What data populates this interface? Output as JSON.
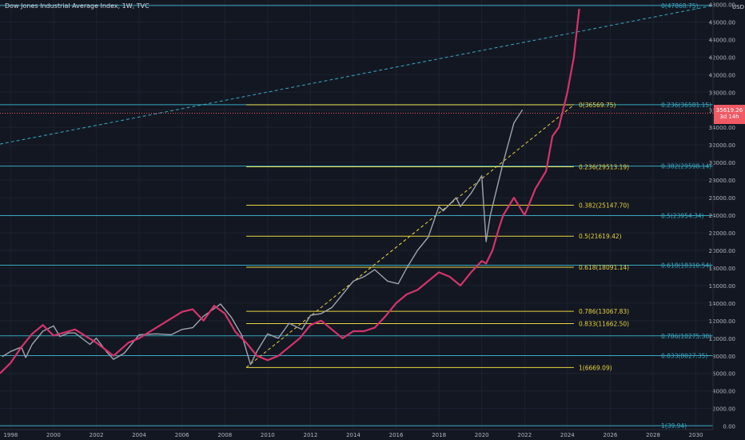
{
  "title": "Dow Jones Industrial Average Index, 1W, TVC",
  "currency": "USD",
  "last_price": {
    "value": "35619.26",
    "countdown": "3d 14h"
  },
  "colors": {
    "background": "#131722",
    "grid": "#1e2230",
    "axis_text": "#b2b5be",
    "cyan_level": "#37a8c2",
    "yellow_level": "#e8d43f",
    "dji_series": "#9ea3ad",
    "overlay_series": "#d6336c",
    "price_badge": "#f05a64"
  },
  "chart_data": {
    "type": "line",
    "title": "Dow Jones Industrial Average Index, 1W, TVC",
    "ylabel": "USD",
    "ylim": [
      -400,
      48500
    ],
    "xlim": [
      1997.5,
      2030.8
    ],
    "y_ticks": [
      "0.00",
      "2000.00",
      "4000.00",
      "6000.00",
      "8000.00",
      "10000.00",
      "12000.00",
      "14000.00",
      "16000.00",
      "18000.00",
      "20000.00",
      "22000.00",
      "24000.00",
      "26000.00",
      "28000.00",
      "30000.00",
      "32000.00",
      "34000.00",
      "36000.00",
      "38000.00",
      "40000.00",
      "42000.00",
      "44000.00",
      "46000.00",
      "48000.00"
    ],
    "x_ticks": [
      1998,
      2000,
      2002,
      2004,
      2006,
      2008,
      2010,
      2012,
      2014,
      2016,
      2018,
      2020,
      2022,
      2024,
      2026,
      2028,
      2030
    ],
    "grid": true,
    "series": [
      {
        "x": [
          1997.6,
          1998.0,
          1998.5,
          1998.7,
          1999.0,
          1999.5,
          2000.0,
          2000.3,
          2000.7,
          2001.0,
          2001.7,
          2002.0,
          2002.5,
          2002.8,
          2003.3,
          2004.0,
          2004.8,
          2005.5,
          2006.0,
          2006.5,
          2007.0,
          2007.8,
          2008.3,
          2008.8,
          2009.2,
          2009.5,
          2010.0,
          2010.5,
          2011.0,
          2011.6,
          2012.0,
          2012.5,
          2013.0,
          2013.5,
          2014.0,
          2014.5,
          2015.0,
          2015.6,
          2016.1,
          2016.5,
          2017.0,
          2017.5,
          2018.0,
          2018.2,
          2018.8,
          2019.0,
          2019.5,
          2020.0,
          2020.2,
          2020.4,
          2020.8,
          2021.0,
          2021.5,
          2021.9
        ],
        "y": [
          7900,
          8500,
          9000,
          7800,
          9300,
          10800,
          11400,
          10200,
          10600,
          10600,
          9300,
          10000,
          8400,
          7600,
          8300,
          10400,
          10500,
          10400,
          11000,
          11200,
          12500,
          13900,
          12400,
          10300,
          7000,
          8500,
          10500,
          10000,
          11700,
          11000,
          12600,
          12800,
          13500,
          15000,
          16500,
          17000,
          17800,
          16500,
          16200,
          18000,
          20000,
          21500,
          25000,
          24500,
          26000,
          25000,
          26500,
          28500,
          21000,
          24000,
          28000,
          30000,
          34500,
          36000
        ]
      },
      {
        "x": [
          1997.5,
          1998.0,
          1998.5,
          1999.0,
          1999.5,
          2000.0,
          2001.0,
          2002.0,
          2002.8,
          2003.5,
          2004.0,
          2005.0,
          2006.0,
          2006.5,
          2007.0,
          2007.5,
          2008.0,
          2008.5,
          2009.0,
          2009.5,
          2010.0,
          2010.5,
          2011.0,
          2011.5,
          2012.0,
          2012.5,
          2013.0,
          2013.5,
          2014.0,
          2014.5,
          2015.0,
          2015.5,
          2016.0,
          2016.5,
          2017.0,
          2017.5,
          2018.0,
          2018.5,
          2019.0,
          2019.5,
          2020.0,
          2020.2,
          2020.5,
          2020.8,
          2021.0,
          2021.5,
          2022.0,
          2022.5,
          2023.0,
          2023.3,
          2023.6,
          2024.0,
          2024.3,
          2024.55
        ],
        "y": [
          6000,
          7200,
          9000,
          10500,
          11500,
          10300,
          11000,
          9500,
          8000,
          9500,
          10000,
          11500,
          13000,
          13300,
          12000,
          13700,
          12800,
          10700,
          9500,
          8000,
          7500,
          8000,
          9000,
          10000,
          11500,
          12000,
          11000,
          10000,
          10800,
          10800,
          11200,
          12500,
          14000,
          15000,
          15500,
          16500,
          17500,
          17000,
          16000,
          17500,
          18800,
          18500,
          20000,
          22500,
          24000,
          26000,
          24000,
          27000,
          29000,
          33000,
          34000,
          38000,
          42000,
          47500
        ]
      }
    ],
    "annotations": {
      "cyan_fib_levels": [
        {
          "label": "0(47868.75)",
          "value": 47868.75
        },
        {
          "label": "0.236(36581.15)",
          "value": 36581.15
        },
        {
          "label": "0.382(29598.14)",
          "value": 29598.14
        },
        {
          "label": "0.5(23954.34)",
          "value": 23954.34
        },
        {
          "label": "0.618(18310.54)",
          "value": 18310.54
        },
        {
          "label": "0.786(10275.30)",
          "value": 10275.3
        },
        {
          "label": "0.833(8027.35)",
          "value": 8027.35
        },
        {
          "label": "1(39.94)",
          "value": 39.94
        }
      ],
      "yellow_fib_levels": [
        {
          "label": "0(36569.75)",
          "value": 36569.75
        },
        {
          "label": "0.236(29513.19)",
          "value": 29513.19
        },
        {
          "label": "0.382(25147.70)",
          "value": 25147.7
        },
        {
          "label": "0.5(21619.42)",
          "value": 21619.42
        },
        {
          "label": "0.618(18091.14)",
          "value": 18091.14
        },
        {
          "label": "0.786(13067.83)",
          "value": 13067.83
        },
        {
          "label": "0.833(11662.50)",
          "value": 11662.5
        },
        {
          "label": "1(6669.09)",
          "value": 6669.09
        }
      ],
      "yellow_range": {
        "x_start": 2009.0,
        "x_end": 2024.3
      },
      "cyan_trendline": {
        "x": [
          1997.5,
          2030.8
        ],
        "y": [
          32100,
          47868.75
        ]
      },
      "yellow_trendline": {
        "x": [
          2009.0,
          2024.3
        ],
        "y": [
          6669.09,
          36569.75
        ]
      }
    }
  }
}
